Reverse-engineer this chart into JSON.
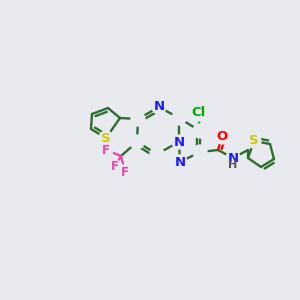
{
  "bg": "#e8eaf0",
  "bond_color": "#2d6e2d",
  "bond_lw": 1.7,
  "atom_colors": {
    "N": "#1a1aff",
    "S": "#cccc00",
    "Cl": "#00aa00",
    "F": "#ee44aa",
    "O": "#ff0000",
    "H": "#555555",
    "C": "#2d6e2d"
  },
  "fs": 9.5
}
